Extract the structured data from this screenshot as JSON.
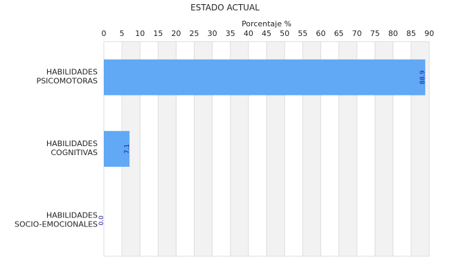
{
  "chart_data": {
    "type": "bar",
    "orientation": "horizontal",
    "title": "ESTADO ACTUAL",
    "xlabel": "Porcentaje %",
    "ylabel": "",
    "axis_position": "top",
    "xlim": [
      0,
      90
    ],
    "xticks": [
      0,
      5,
      10,
      15,
      20,
      25,
      30,
      35,
      40,
      45,
      50,
      55,
      60,
      65,
      70,
      75,
      80,
      85,
      90
    ],
    "grid": true,
    "alternating_bands": true,
    "categories": [
      [
        "HABILIDADES",
        "PSICOMOTORAS"
      ],
      [
        "HABILIDADES",
        "COGNITIVAS"
      ],
      [
        "HABILIDADES",
        "SOCIO-EMOCIONALES"
      ]
    ],
    "values": [
      88.9,
      7.1,
      0.0
    ],
    "data_labels": [
      "88.9",
      "7.1",
      "0.0"
    ],
    "colors": {
      "bar": "#61a8f5",
      "band": "#f2f2f2",
      "grid": "#dddddd",
      "data_label": "#1a1aa0"
    }
  }
}
